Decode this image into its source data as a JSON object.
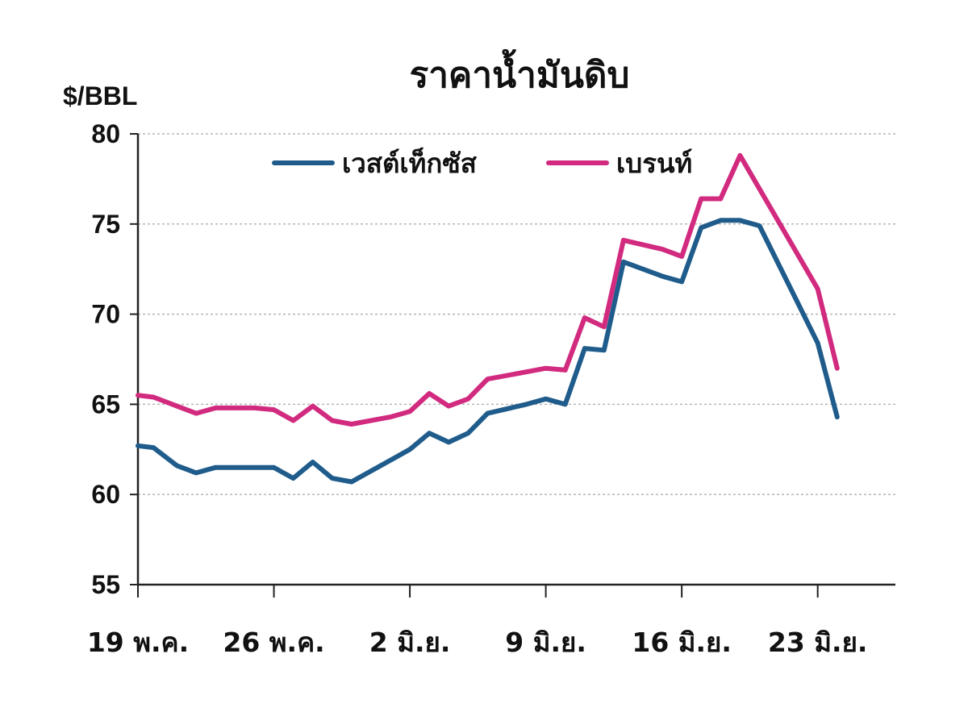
{
  "chart_data": {
    "type": "line",
    "title": "ราคาน้ำมันดิบ",
    "ylabel": "$/BBL",
    "xlabel": "",
    "ylim": [
      55,
      80
    ],
    "yticks": [
      55,
      60,
      65,
      70,
      75,
      80
    ],
    "grid": true,
    "legend_position": "top-center",
    "x_tick_labels": [
      {
        "label": "19 พ.ค.",
        "x": 0
      },
      {
        "label": "26 พ.ค.",
        "x": 7
      },
      {
        "label": "2 มิ.ย.",
        "x": 14
      },
      {
        "label": "9 มิ.ย.",
        "x": 21
      },
      {
        "label": "16 มิ.ย.",
        "x": 28
      },
      {
        "label": "23 มิ.ย.",
        "x": 35
      }
    ],
    "x_range": [
      0,
      39
    ],
    "series": [
      {
        "name": "เวสต์เท็กซัส",
        "color": "#1f5c8b",
        "points": [
          [
            0,
            62.7
          ],
          [
            0.8,
            62.6
          ],
          [
            2,
            61.6
          ],
          [
            3,
            61.2
          ],
          [
            4,
            61.5
          ],
          [
            5,
            61.5
          ],
          [
            6,
            61.5
          ],
          [
            7,
            61.5
          ],
          [
            8,
            60.9
          ],
          [
            9,
            61.8
          ],
          [
            10,
            60.9
          ],
          [
            11,
            60.7
          ],
          [
            13,
            61.9
          ],
          [
            14,
            62.5
          ],
          [
            15,
            63.4
          ],
          [
            16,
            62.9
          ],
          [
            17,
            63.4
          ],
          [
            18,
            64.5
          ],
          [
            20,
            65.0
          ],
          [
            21,
            65.3
          ],
          [
            22,
            65.0
          ],
          [
            23,
            68.1
          ],
          [
            24,
            68.0
          ],
          [
            25,
            72.9
          ],
          [
            27,
            72.1
          ],
          [
            28,
            71.8
          ],
          [
            29,
            74.8
          ],
          [
            30,
            75.2
          ],
          [
            31,
            75.2
          ],
          [
            32,
            74.9
          ],
          [
            35,
            68.4
          ],
          [
            36,
            64.3
          ]
        ]
      },
      {
        "name": "เบรนท์",
        "color": "#d12a7e",
        "points": [
          [
            0,
            65.5
          ],
          [
            0.8,
            65.4
          ],
          [
            2,
            64.9
          ],
          [
            3,
            64.5
          ],
          [
            4,
            64.8
          ],
          [
            5,
            64.8
          ],
          [
            6,
            64.8
          ],
          [
            7,
            64.7
          ],
          [
            8,
            64.1
          ],
          [
            9,
            64.9
          ],
          [
            10,
            64.1
          ],
          [
            11,
            63.9
          ],
          [
            13,
            64.3
          ],
          [
            14,
            64.6
          ],
          [
            15,
            65.6
          ],
          [
            16,
            64.9
          ],
          [
            17,
            65.3
          ],
          [
            18,
            66.4
          ],
          [
            20,
            66.8
          ],
          [
            21,
            67.0
          ],
          [
            22,
            66.9
          ],
          [
            23,
            69.8
          ],
          [
            24,
            69.3
          ],
          [
            25,
            74.1
          ],
          [
            27,
            73.6
          ],
          [
            28,
            73.2
          ],
          [
            29,
            76.4
          ],
          [
            30,
            76.4
          ],
          [
            31,
            78.8
          ],
          [
            35,
            71.4
          ],
          [
            36,
            67.0
          ]
        ]
      }
    ]
  }
}
